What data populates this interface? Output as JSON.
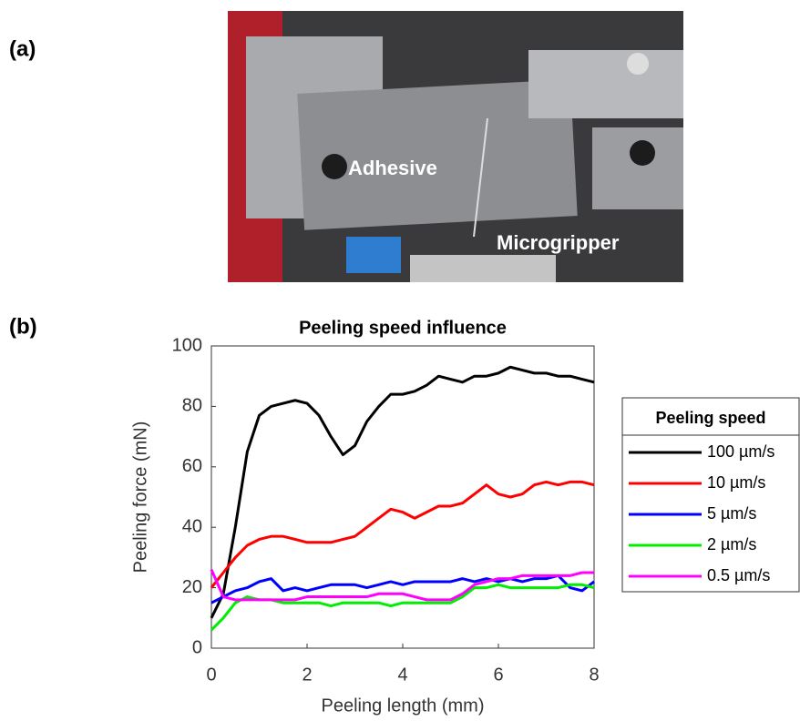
{
  "panel_a": {
    "label": "(a)",
    "annotations": [
      "Adhesive",
      "Microgripper"
    ]
  },
  "panel_b_label": "(b)",
  "chart_data": {
    "type": "line",
    "title": "Peeling speed influence",
    "x_label": "Peeling length (mm)",
    "y_label": "Peeling force (mN)",
    "x": [
      0,
      0.25,
      0.5,
      0.75,
      1,
      1.25,
      1.5,
      1.75,
      2,
      2.25,
      2.5,
      2.75,
      3,
      3.25,
      3.5,
      3.75,
      4,
      4.25,
      4.5,
      4.75,
      5,
      5.25,
      5.5,
      5.75,
      6,
      6.25,
      6.5,
      6.75,
      7,
      7.25,
      7.5,
      7.75,
      8
    ],
    "xlim": [
      0,
      8
    ],
    "xticks": [
      0,
      2,
      4,
      6,
      8
    ],
    "ylim": [
      0,
      100
    ],
    "yticks": [
      0,
      20,
      40,
      60,
      80,
      100
    ],
    "legend_title": "Peeling speed",
    "legend_position": "right",
    "series": [
      {
        "name": "100 µm/s",
        "color": "#000000",
        "values": [
          10,
          18,
          40,
          65,
          77,
          80,
          81,
          82,
          81,
          77,
          70,
          64,
          67,
          75,
          80,
          84,
          84,
          85,
          87,
          90,
          89,
          88,
          90,
          90,
          91,
          93,
          92,
          91,
          91,
          90,
          90,
          89,
          88
        ]
      },
      {
        "name": "10 µm/s",
        "color": "#ff0000",
        "values": [
          20,
          25,
          30,
          34,
          36,
          37,
          37,
          36,
          35,
          35,
          35,
          36,
          37,
          40,
          43,
          46,
          45,
          43,
          45,
          47,
          47,
          48,
          51,
          54,
          51,
          50,
          51,
          54,
          55,
          54,
          55,
          55,
          54
        ]
      },
      {
        "name": "5 µm/s",
        "color": "#0000ff",
        "values": [
          15,
          17,
          19,
          20,
          22,
          23,
          19,
          20,
          19,
          20,
          21,
          21,
          21,
          20,
          21,
          22,
          21,
          22,
          22,
          22,
          22,
          23,
          22,
          23,
          22,
          23,
          22,
          23,
          23,
          24,
          20,
          19,
          22
        ]
      },
      {
        "name": "2 µm/s",
        "color": "#00ee00",
        "values": [
          6,
          10,
          15,
          17,
          16,
          16,
          15,
          15,
          15,
          15,
          14,
          15,
          15,
          15,
          15,
          14,
          15,
          15,
          15,
          15,
          15,
          17,
          20,
          20,
          21,
          20,
          20,
          20,
          20,
          20,
          21,
          21,
          20
        ]
      },
      {
        "name": "0.5 µm/s",
        "color": "#ff00ff",
        "values": [
          26,
          17,
          16,
          16,
          16,
          16,
          16,
          16,
          17,
          17,
          17,
          17,
          17,
          17,
          18,
          18,
          18,
          17,
          16,
          16,
          16,
          18,
          21,
          22,
          23,
          23,
          24,
          24,
          24,
          24,
          24,
          25,
          25
        ]
      }
    ]
  }
}
